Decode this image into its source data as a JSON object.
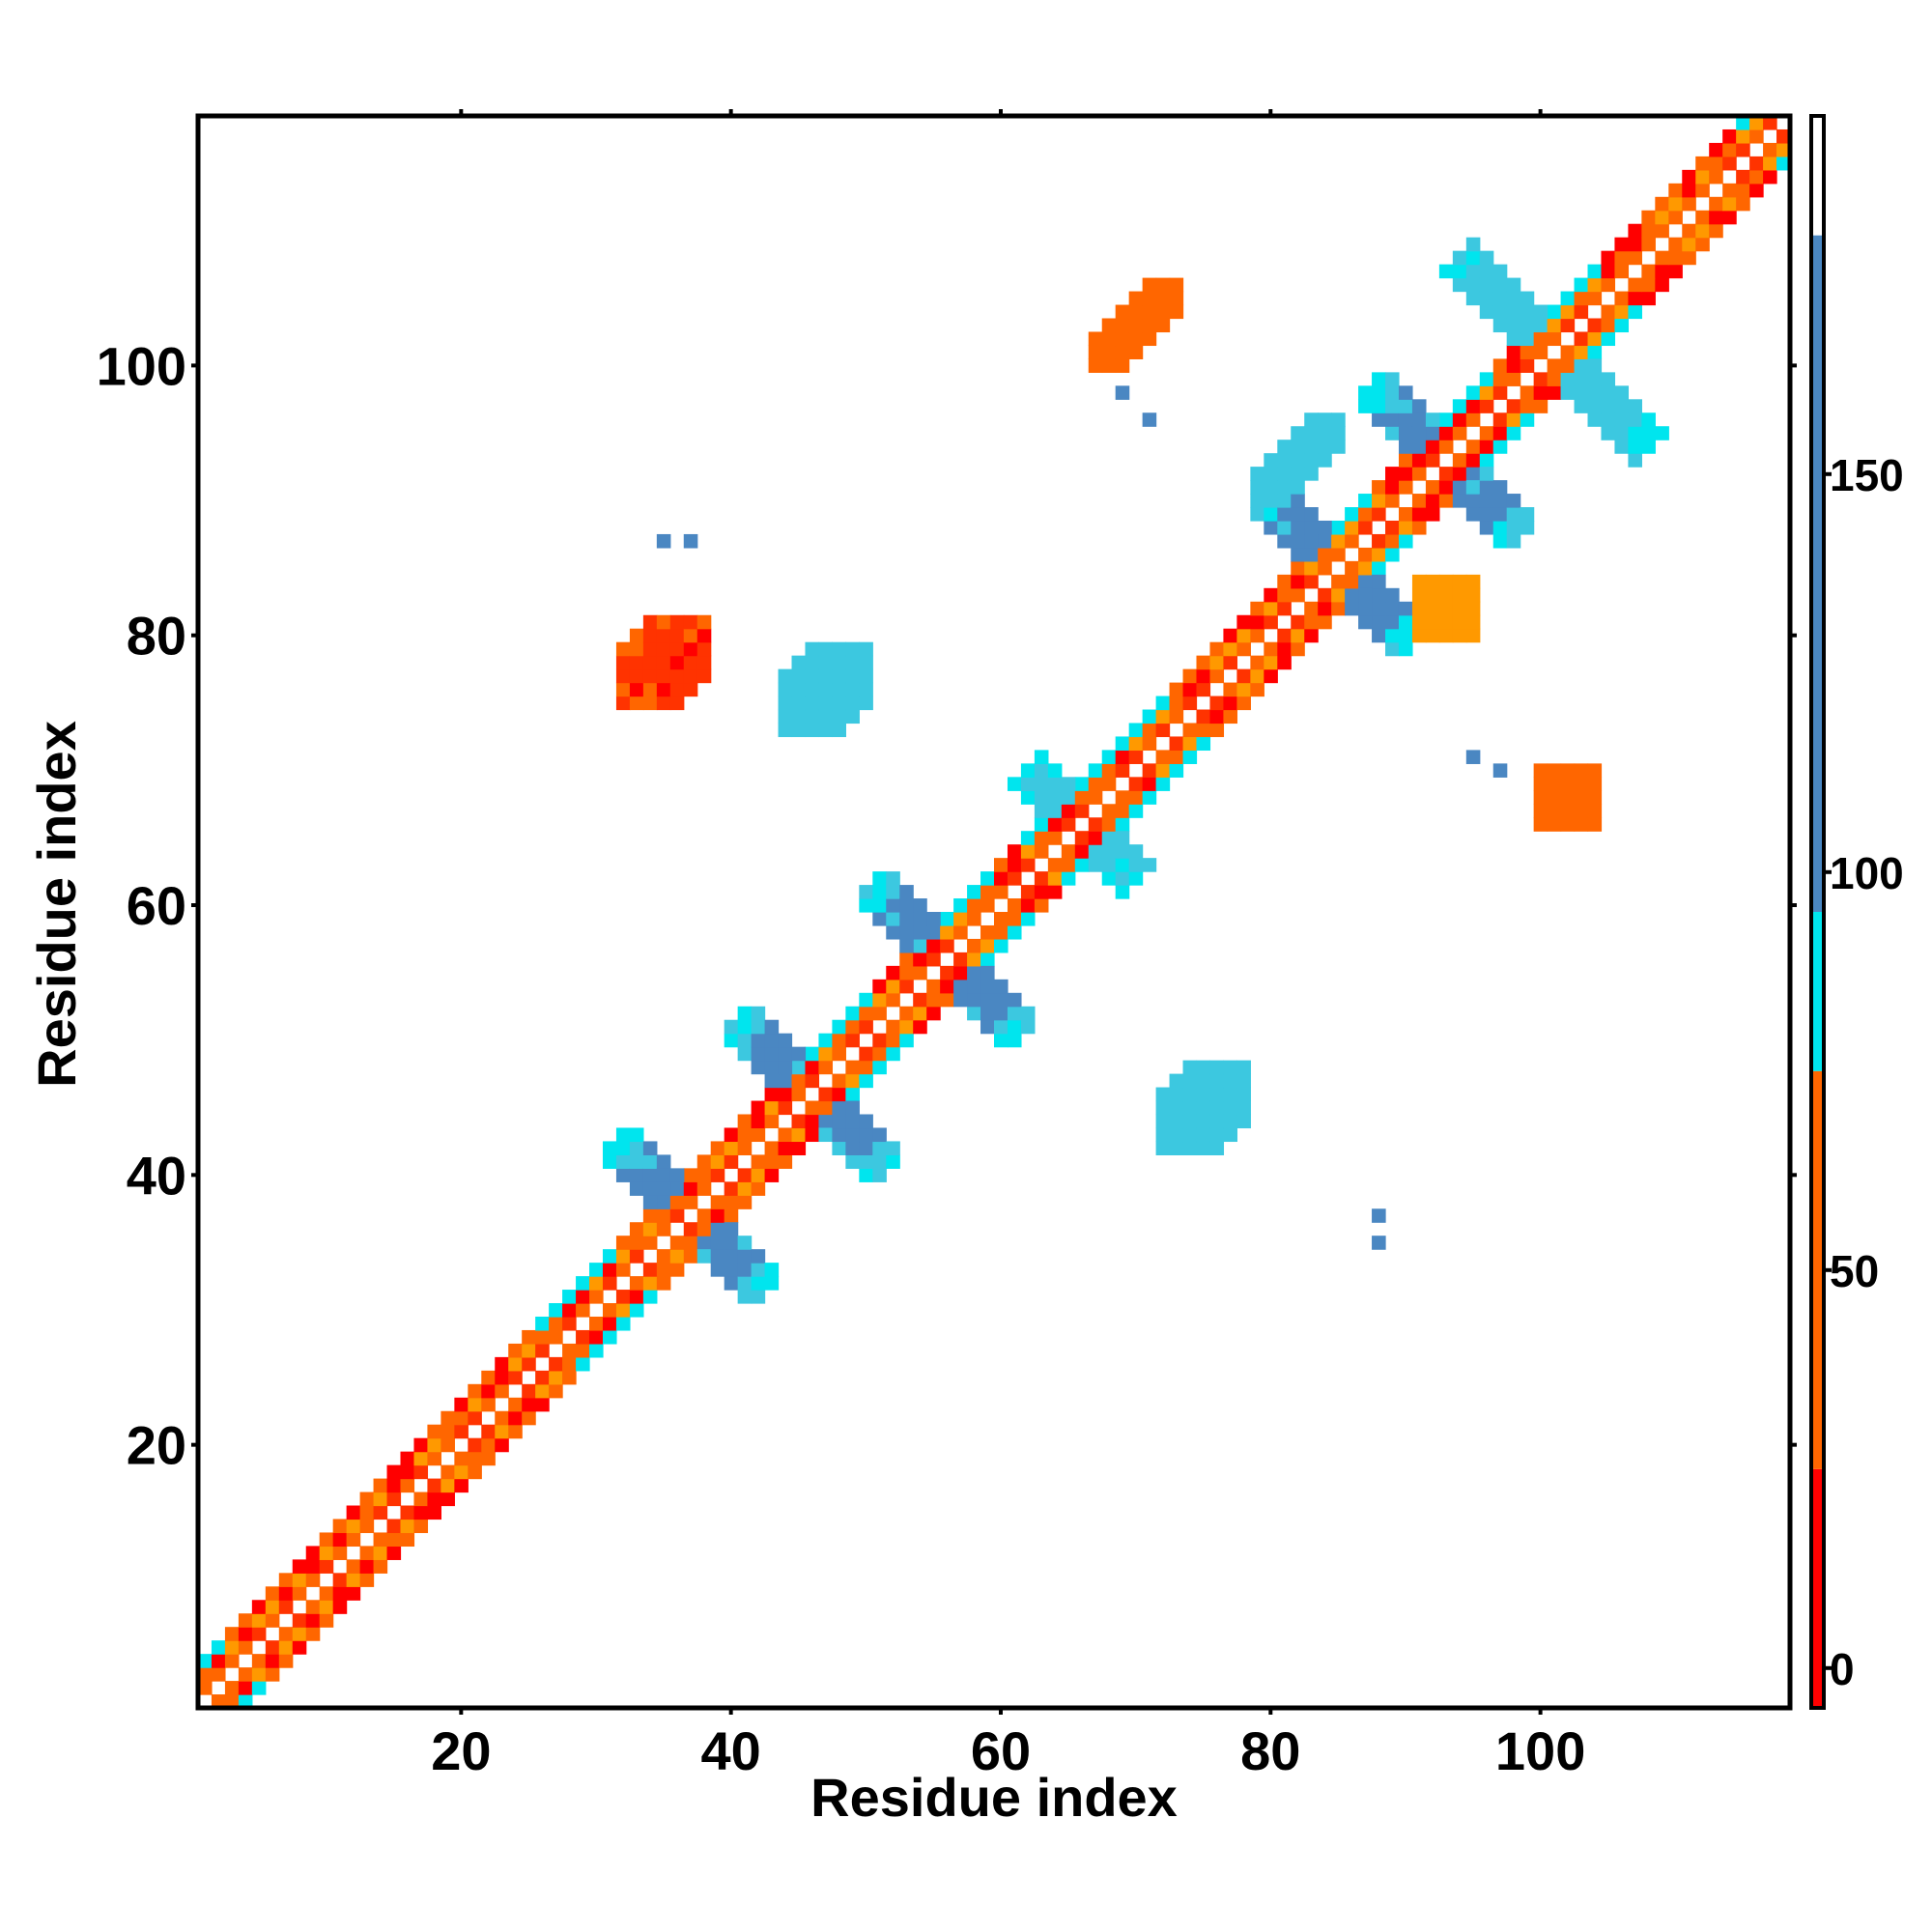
{
  "chart_data": {
    "type": "heatmap",
    "title": "",
    "xlabel": "Residue index",
    "ylabel": "Residue index",
    "xlim": [
      1,
      118
    ],
    "ylim": [
      1,
      118
    ],
    "x_ticks": [
      20,
      40,
      60,
      80,
      100
    ],
    "y_ticks": [
      20,
      40,
      60,
      80,
      100
    ],
    "symmetric": true,
    "colorbar": {
      "ticks": [
        0,
        50,
        100,
        150
      ],
      "range": [
        -5,
        195
      ],
      "bands": [
        {
          "from": -5,
          "to": 25,
          "color": "#ff0000"
        },
        {
          "from": 25,
          "to": 75,
          "color": "#ff6600"
        },
        {
          "from": 75,
          "to": 95,
          "color": "#00e5ee"
        },
        {
          "from": 95,
          "to": 180,
          "color": "#4a87c2"
        },
        {
          "from": 180,
          "to": 195,
          "color": "#ffffff"
        }
      ]
    },
    "palette": {
      "red": "#ff0000",
      "red_orange": "#ff3300",
      "orange": "#ff6600",
      "amber": "#ff9900",
      "cyan": "#00e5ee",
      "light_blue": "#3cc8e0",
      "steel_blue": "#4a87c2"
    },
    "contact_regions": [
      {
        "kind": "diagonal",
        "from": 1,
        "to": 118,
        "band": 3
      },
      {
        "kind": "antiparallel",
        "center": [
          37,
          37
        ],
        "length": 8,
        "width": 1.6,
        "color": "#4a87c2"
      },
      {
        "kind": "antiparallel",
        "center": [
          46,
          46
        ],
        "length": 8,
        "width": 1.6,
        "color": "#4a87c2"
      },
      {
        "kind": "antiparallel",
        "center": [
          56,
          56
        ],
        "length": 8,
        "width": 1.6,
        "color": "#4a87c2"
      },
      {
        "kind": "antiparallel",
        "center": [
          66,
          66
        ],
        "length": 6,
        "width": 1.6,
        "color": "#3cc8e0"
      },
      {
        "kind": "antiparallel",
        "center": [
          85,
          85
        ],
        "length": 8,
        "width": 1.6,
        "color": "#4a87c2"
      },
      {
        "kind": "antiparallel",
        "center": [
          93,
          93
        ],
        "length": 8,
        "width": 1.6,
        "color": "#4a87c2"
      },
      {
        "kind": "antiparallel",
        "center": [
          101,
          101
        ],
        "length": 10,
        "width": 1.6,
        "color": "#3cc8e0"
      },
      {
        "kind": "blob",
        "center": [
          35,
          78
        ],
        "size": [
          3,
          3
        ],
        "color": "#ff3300"
      },
      {
        "kind": "blob",
        "center": [
          47,
          76
        ],
        "size": [
          3,
          3
        ],
        "color": "#3cc8e0"
      },
      {
        "kind": "blob",
        "center": [
          75,
          45
        ],
        "size": [
          3,
          3
        ],
        "color": "#3cc8e0"
      },
      {
        "kind": "blob",
        "center": [
          102,
          68
        ],
        "size": [
          2,
          3
        ],
        "color": "#ff6600"
      },
      {
        "kind": "blob",
        "center": [
          70,
          103
        ],
        "size": [
          3,
          2
        ],
        "color": "#ff6600"
      },
      {
        "kind": "blob",
        "center": [
          82,
          93
        ],
        "size": [
          3,
          2
        ],
        "color": "#3cc8e0"
      },
      {
        "kind": "blob",
        "center": [
          93,
          82
        ],
        "size": [
          2,
          3
        ],
        "color": "#ff9900"
      },
      {
        "kind": "dots",
        "points": [
          [
            35,
            87
          ],
          [
            37,
            87
          ],
          [
            88,
            37
          ],
          [
            88,
            35
          ],
          [
            69,
            98
          ],
          [
            71,
            96
          ],
          [
            95,
            71
          ],
          [
            97,
            70
          ]
        ],
        "color": "#4a87c2"
      }
    ]
  }
}
